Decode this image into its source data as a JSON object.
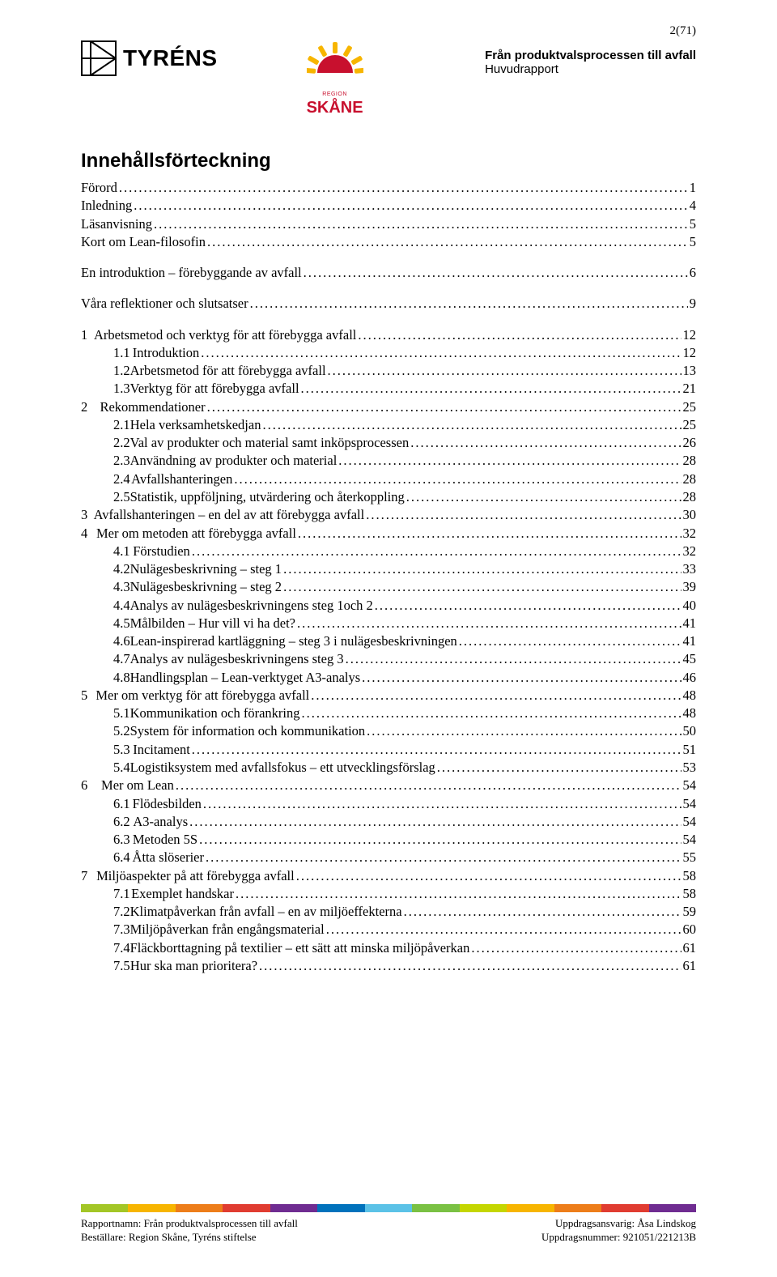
{
  "page_number": "2(71)",
  "header": {
    "tyrens_text": "TYRÉNS",
    "skane_region": "REGION",
    "skane_text": "SKÅNE",
    "title_bold": "Från produktvalsprocessen till avfall",
    "title_sub": "Huvudrapport"
  },
  "toc_heading": "Innehållsförteckning",
  "toc": [
    {
      "num": "",
      "label": "Förord",
      "page": "1",
      "lvl": 0
    },
    {
      "num": "",
      "label": "Inledning",
      "page": "4",
      "lvl": 0
    },
    {
      "num": "",
      "label": "Läsanvisning",
      "page": "5",
      "lvl": 0
    },
    {
      "num": "",
      "label": "Kort om Lean-filosofin",
      "page": "5",
      "lvl": 0
    },
    {
      "num": "",
      "label": "En introduktion – förebyggande av avfall",
      "page": "6",
      "lvl": 0,
      "spaced": true
    },
    {
      "num": "",
      "label": "Våra reflektioner och slutsatser",
      "page": "9",
      "lvl": 0,
      "spaced": true
    },
    {
      "num": "1",
      "label": "Arbetsmetod och verktyg för att förebygga avfall",
      "page": "12",
      "lvl": 1,
      "spaced": true
    },
    {
      "num": "1.1",
      "label": "Introduktion",
      "page": "12",
      "lvl": 2
    },
    {
      "num": "1.2",
      "label": "Arbetsmetod för att förebygga avfall",
      "page": "13",
      "lvl": 2
    },
    {
      "num": "1.3",
      "label": "Verktyg för att förebygga avfall",
      "page": "21",
      "lvl": 2
    },
    {
      "num": "2",
      "label": "Rekommendationer",
      "page": "25",
      "lvl": 1
    },
    {
      "num": "2.1",
      "label": "Hela verksamhetskedjan",
      "page": "25",
      "lvl": 2
    },
    {
      "num": "2.2",
      "label": "Val av produkter och material samt inköpsprocessen",
      "page": "26",
      "lvl": 2
    },
    {
      "num": "2.3",
      "label": "Användning av produkter och material",
      "page": "28",
      "lvl": 2
    },
    {
      "num": "2.4",
      "label": "Avfallshanteringen",
      "page": "28",
      "lvl": 2
    },
    {
      "num": "2.5",
      "label": "Statistik, uppföljning, utvärdering och återkoppling",
      "page": "28",
      "lvl": 2
    },
    {
      "num": "3",
      "label": "Avfallshanteringen – en del av att förebygga avfall",
      "page": "30",
      "lvl": 1
    },
    {
      "num": "4",
      "label": "Mer om metoden att förebygga avfall",
      "page": "32",
      "lvl": 1
    },
    {
      "num": "4.1",
      "label": "Förstudien",
      "page": "32",
      "lvl": 2
    },
    {
      "num": "4.2",
      "label": "Nulägesbeskrivning – steg 1",
      "page": "33",
      "lvl": 2
    },
    {
      "num": "4.3",
      "label": "Nulägesbeskrivning – steg 2",
      "page": "39",
      "lvl": 2
    },
    {
      "num": "4.4",
      "label": "Analys av nulägesbeskrivningens steg 1och 2",
      "page": "40",
      "lvl": 2
    },
    {
      "num": "4.5",
      "label": "Målbilden – Hur vill vi ha det?",
      "page": "41",
      "lvl": 2
    },
    {
      "num": "4.6",
      "label": "Lean-inspirerad kartläggning – steg 3 i nulägesbeskrivningen",
      "page": "41",
      "lvl": 2
    },
    {
      "num": "4.7",
      "label": "Analys av nulägesbeskrivningens steg 3",
      "page": "45",
      "lvl": 2
    },
    {
      "num": "4.8",
      "label": "Handlingsplan – Lean-verktyget A3-analys",
      "page": "46",
      "lvl": 2
    },
    {
      "num": "5",
      "label": "Mer om verktyg för att förebygga avfall",
      "page": "48",
      "lvl": 1
    },
    {
      "num": "5.1",
      "label": "Kommunikation och förankring",
      "page": "48",
      "lvl": 2
    },
    {
      "num": "5.2",
      "label": "System för information och kommunikation",
      "page": "50",
      "lvl": 2
    },
    {
      "num": "5.3",
      "label": "Incitament",
      "page": "51",
      "lvl": 2
    },
    {
      "num": "5.4",
      "label": "Logistiksystem med avfallsfokus – ett utvecklingsförslag",
      "page": "53",
      "lvl": 2
    },
    {
      "num": "6",
      "label": "Mer om Lean",
      "page": "54",
      "lvl": 1
    },
    {
      "num": "6.1",
      "label": "Flödesbilden",
      "page": "54",
      "lvl": 2
    },
    {
      "num": "6.2",
      "label": "A3-analys",
      "page": "54",
      "lvl": 2
    },
    {
      "num": "6.3",
      "label": "Metoden 5S",
      "page": "54",
      "lvl": 2
    },
    {
      "num": "6.4",
      "label": "Åtta slöserier",
      "page": "55",
      "lvl": 2
    },
    {
      "num": "7",
      "label": "Miljöaspekter på att förebygga avfall",
      "page": "58",
      "lvl": 1
    },
    {
      "num": "7.1",
      "label": "Exemplet handskar",
      "page": "58",
      "lvl": 2
    },
    {
      "num": "7.2",
      "label": "Klimatpåverkan från avfall – en av miljöeffekterna",
      "page": "59",
      "lvl": 2
    },
    {
      "num": "7.3",
      "label": "Miljöpåverkan från engångsmaterial",
      "page": "60",
      "lvl": 2
    },
    {
      "num": "7.4",
      "label": "Fläckborttagning på textilier – ett sätt att minska miljöpåverkan",
      "page": "61",
      "lvl": 2
    },
    {
      "num": "7.5",
      "label": "Hur ska man prioritera?",
      "page": "61",
      "lvl": 2
    }
  ],
  "footer_bar_colors": [
    "#a3c626",
    "#f7b500",
    "#ed7d1a",
    "#e03c31",
    "#6f2c91",
    "#0072bc",
    "#5bc2e7",
    "#7ac143",
    "#c4d600",
    "#f7b500",
    "#ed7d1a",
    "#e03c31",
    "#6f2c91"
  ],
  "footer": {
    "left1": "Rapportnamn: Från produktvalsprocessen till avfall",
    "left2": "Beställare: Region Skåne, Tyréns stiftelse",
    "right1": "Uppdragsansvarig: Åsa Lindskog",
    "right2": "Uppdragsnummer: 921051/221213B"
  },
  "colors": {
    "skane_red": "#c8102e",
    "skane_yellow": "#f7b500"
  }
}
